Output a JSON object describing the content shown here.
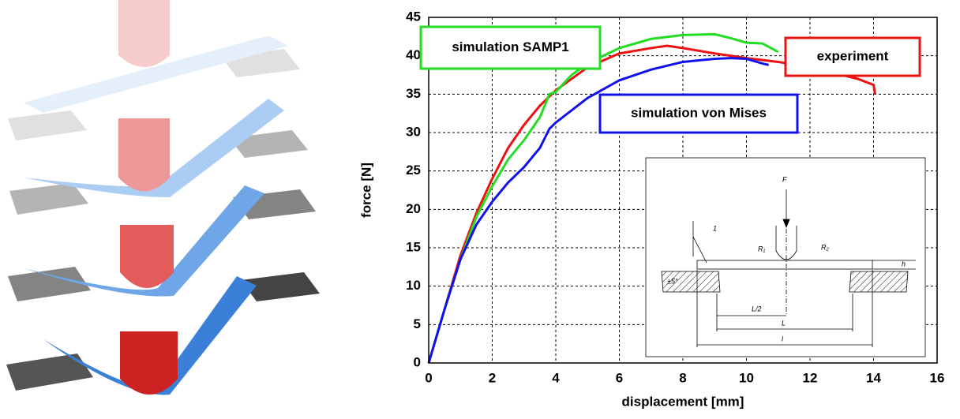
{
  "chart_data": {
    "type": "line",
    "xlabel": "displacement [mm]",
    "ylabel": "force [N]",
    "xlim": [
      0,
      16
    ],
    "xticks": [
      0,
      2,
      4,
      6,
      8,
      10,
      12,
      14,
      16
    ],
    "ylim": [
      0,
      45
    ],
    "yticks": [
      0,
      5,
      10,
      15,
      20,
      25,
      30,
      35,
      40,
      45
    ],
    "grid": true,
    "series": [
      {
        "name": "experiment",
        "color": "#ee1111",
        "x": [
          0,
          0.5,
          1,
          1.5,
          2,
          2.5,
          3,
          3.5,
          4,
          5,
          6,
          7,
          7.5,
          8,
          9,
          10,
          11,
          12,
          13,
          13.5,
          14,
          14.05
        ],
        "values": [
          0,
          7,
          14,
          19.5,
          24,
          28,
          31,
          33.5,
          35.5,
          38.5,
          40.3,
          41,
          41.3,
          41,
          40.3,
          39.7,
          39.2,
          38.5,
          37.5,
          37,
          36.2,
          35
        ]
      },
      {
        "name": "simulation SAMP1",
        "color": "#22dd22",
        "x": [
          0,
          0.5,
          1,
          1.5,
          2,
          2.5,
          3,
          3.5,
          3.8,
          4,
          4.5,
          5,
          6,
          7,
          8,
          9,
          9.5,
          10,
          10.5,
          11
        ],
        "values": [
          0,
          7,
          13.5,
          19,
          23,
          26.5,
          29,
          32,
          35,
          35.3,
          37.5,
          39,
          41,
          42.2,
          42.7,
          42.8,
          42.3,
          41.7,
          41.6,
          40.5
        ]
      },
      {
        "name": "simulation von Mises",
        "color": "#1111ee",
        "x": [
          0,
          0.5,
          1,
          1.5,
          2,
          2.5,
          3,
          3.5,
          3.8,
          4,
          5,
          6,
          7,
          8,
          9,
          9.5,
          10,
          10.5,
          10.7
        ],
        "values": [
          0,
          7,
          13.5,
          18,
          21,
          23.5,
          25.5,
          28,
          30.5,
          31.3,
          34.5,
          36.8,
          38.2,
          39.2,
          39.6,
          39.7,
          39.6,
          39,
          38.8
        ]
      }
    ]
  },
  "inset": {
    "labels": [
      "F",
      "1",
      "R₁",
      "R₂",
      "h",
      "±5°",
      "L/2",
      "L",
      "l"
    ]
  }
}
